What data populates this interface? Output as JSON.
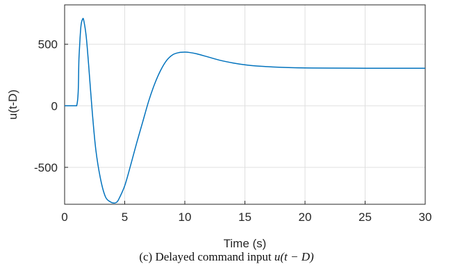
{
  "chart_data": {
    "type": "line",
    "xlabel": "Time (s)",
    "ylabel": "u(t-D)",
    "xlim": [
      0,
      30
    ],
    "ylim": [
      -800,
      820
    ],
    "xticks": [
      0,
      5,
      10,
      15,
      20,
      25,
      30
    ],
    "yticks": [
      -500,
      0,
      500
    ],
    "ytick_labels": [
      "-500",
      "0",
      "500"
    ],
    "grid": true,
    "series": [
      {
        "color": "#0072bd",
        "x": [
          0,
          1.0,
          1.2,
          1.35,
          1.5,
          1.6,
          1.8,
          2.0,
          2.3,
          2.6,
          3.0,
          3.4,
          3.8,
          4.1,
          4.3,
          4.5,
          5.0,
          5.5,
          6.0,
          6.5,
          7.0,
          7.5,
          8.0,
          8.5,
          9.0,
          9.5,
          10.0,
          10.4,
          11.0,
          12.0,
          13.0,
          14.0,
          15.0,
          16.0,
          18.0,
          20.0,
          22.0,
          25.0,
          30.0
        ],
        "y": [
          0,
          0,
          400,
          640,
          705,
          690,
          560,
          330,
          -50,
          -360,
          -600,
          -740,
          -780,
          -790,
          -785,
          -760,
          -650,
          -480,
          -300,
          -130,
          40,
          180,
          290,
          370,
          415,
          432,
          436,
          433,
          422,
          395,
          368,
          348,
          333,
          323,
          313,
          308,
          306,
          305,
          305
        ]
      }
    ]
  },
  "caption": {
    "prefix": "(c) Delayed command input ",
    "math": "u(t − D)"
  }
}
